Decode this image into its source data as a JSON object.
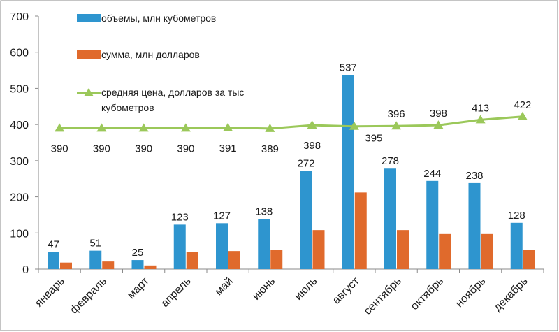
{
  "chart_data": {
    "type": "bar",
    "categories": [
      "январь",
      "февраль",
      "март",
      "апрель",
      "май",
      "июнь",
      "июль",
      "август",
      "сентябрь",
      "октябрь",
      "ноябрь",
      "декабрь"
    ],
    "series": [
      {
        "name": "объемы, млн кубометров",
        "type": "bar",
        "color": "#2E95CF",
        "values": [
          47,
          51,
          25,
          123,
          127,
          138,
          272,
          537,
          278,
          244,
          238,
          128
        ],
        "data_labels": [
          "47",
          "51",
          "25",
          "123",
          "127",
          "138",
          "272",
          "537",
          "278",
          "244",
          "238",
          "128"
        ]
      },
      {
        "name": "сумма, млн долларов",
        "type": "bar",
        "color": "#E06A2C",
        "values": [
          18,
          21,
          10,
          48,
          50,
          54,
          108,
          212,
          108,
          97,
          97,
          54
        ]
      },
      {
        "name": "средняя цена, долларов за тыс кубометров",
        "name_lines": [
          "средняя цена, долларов за тыс",
          "кубометров"
        ],
        "type": "line",
        "color": "#9BC85A",
        "values": [
          390,
          390,
          390,
          390,
          391,
          389,
          398,
          395,
          396,
          398,
          413,
          422
        ],
        "data_labels": [
          "390",
          "390",
          "390",
          "390",
          "391",
          "389",
          "398",
          "395",
          "396",
          "398",
          "413",
          "422"
        ]
      }
    ],
    "ylim": [
      0,
      700
    ],
    "yticks": [
      "0",
      "100",
      "200",
      "300",
      "400",
      "500",
      "600",
      "700"
    ],
    "xlabel": "",
    "ylabel": "",
    "title": "",
    "grid": false,
    "legend_position": "top-center"
  }
}
